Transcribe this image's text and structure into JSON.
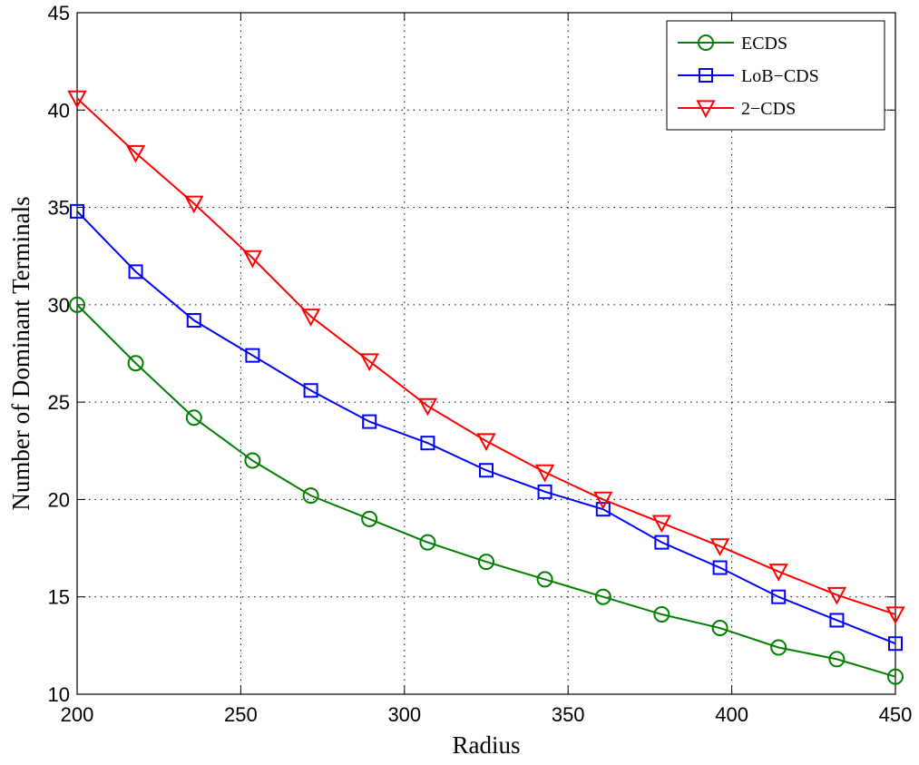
{
  "chart_data": {
    "type": "line",
    "title": "",
    "xlabel": "Radius",
    "ylabel": "Number of Dominant Terminals",
    "xlim": [
      200,
      450
    ],
    "ylim": [
      10,
      45
    ],
    "x_ticks": [
      200,
      250,
      300,
      350,
      400,
      450
    ],
    "y_ticks": [
      10,
      15,
      20,
      25,
      30,
      35,
      40,
      45
    ],
    "grid": true,
    "legend_position": "top-right",
    "x": [
      200,
      217.9,
      235.7,
      253.6,
      271.4,
      289.3,
      307.1,
      325,
      342.9,
      360.7,
      378.6,
      396.4,
      414.3,
      432.1,
      450
    ],
    "series": [
      {
        "name": "ECDS",
        "color": "#008000",
        "marker": "circle",
        "values": [
          30.0,
          27.0,
          24.2,
          22.0,
          20.2,
          19.0,
          17.8,
          16.8,
          15.9,
          15.0,
          14.1,
          13.4,
          12.4,
          11.8,
          10.9
        ]
      },
      {
        "name": "LoB−CDS",
        "color": "#0000ff",
        "marker": "square",
        "values": [
          34.8,
          31.7,
          29.2,
          27.4,
          25.6,
          24.0,
          22.9,
          21.5,
          20.4,
          19.5,
          17.8,
          16.5,
          15.0,
          13.8,
          12.6
        ]
      },
      {
        "name": "2−CDS",
        "color": "#ff0000",
        "marker": "triangle-down",
        "values": [
          40.6,
          37.8,
          35.2,
          32.4,
          29.4,
          27.1,
          24.8,
          23.0,
          21.4,
          20.0,
          18.8,
          17.6,
          16.3,
          15.1,
          14.1
        ]
      }
    ]
  }
}
